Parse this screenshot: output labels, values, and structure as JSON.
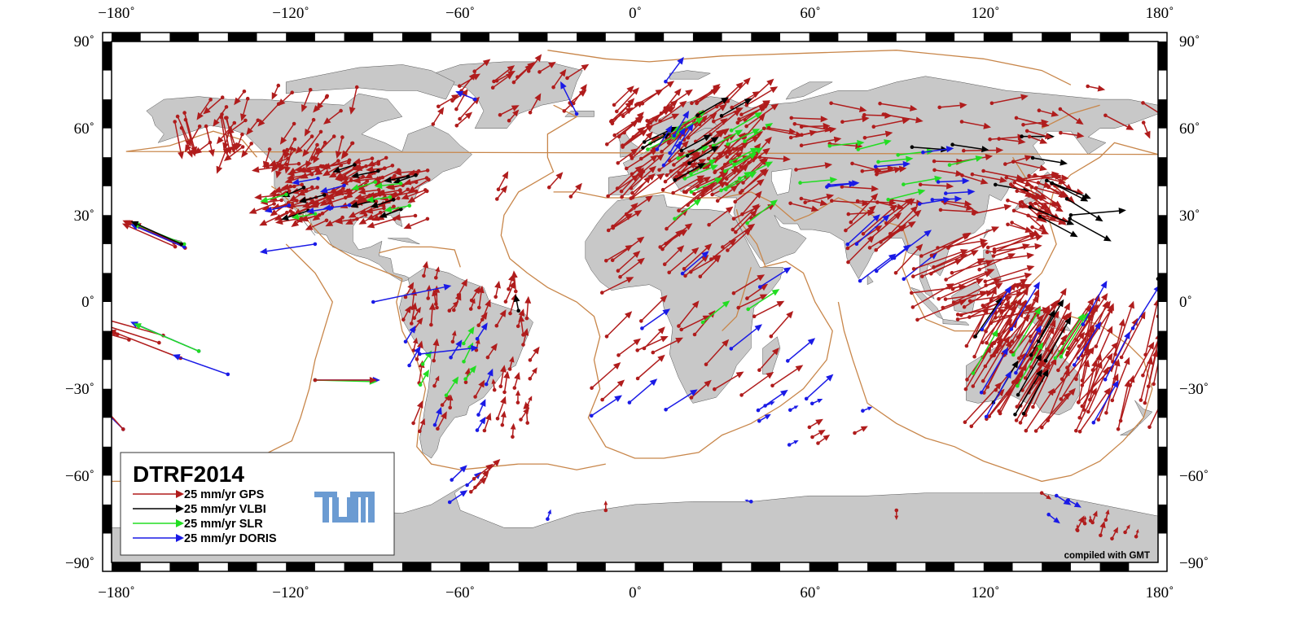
{
  "map": {
    "title": "DTRF2014",
    "credit": "compiled with GMT",
    "logo_text": "TUM",
    "colors": {
      "land": "#c8c8c8",
      "ocean": "#ffffff",
      "plate_boundary": "#c8864a",
      "coastline": "#555555",
      "frame": "#000000",
      "GPS": "#b01c1c",
      "VLBI": "#000000",
      "SLR": "#22dd22",
      "DORIS": "#1a1ae6",
      "logo": "#6b9bd2"
    },
    "lon_ticks": [
      "−180˚",
      "−120˚",
      "−60˚",
      "0˚",
      "60˚",
      "120˚",
      "180˚"
    ],
    "lat_ticks": [
      "90˚",
      "60˚",
      "30˚",
      "0˚",
      "−30˚",
      "−60˚",
      "−90˚"
    ],
    "legend": [
      {
        "label": "25 mm/yr GPS",
        "technique": "GPS"
      },
      {
        "label": "25 mm/yr VLBI",
        "technique": "VLBI"
      },
      {
        "label": "25 mm/yr SLR",
        "technique": "SLR"
      },
      {
        "label": "25 mm/yr DORIS",
        "technique": "DORIS"
      }
    ],
    "extent": {
      "lon": [
        -180,
        180
      ],
      "lat": [
        -90,
        90
      ]
    },
    "icons": [
      "tum-logo-icon",
      "arrow-icon"
    ]
  }
}
